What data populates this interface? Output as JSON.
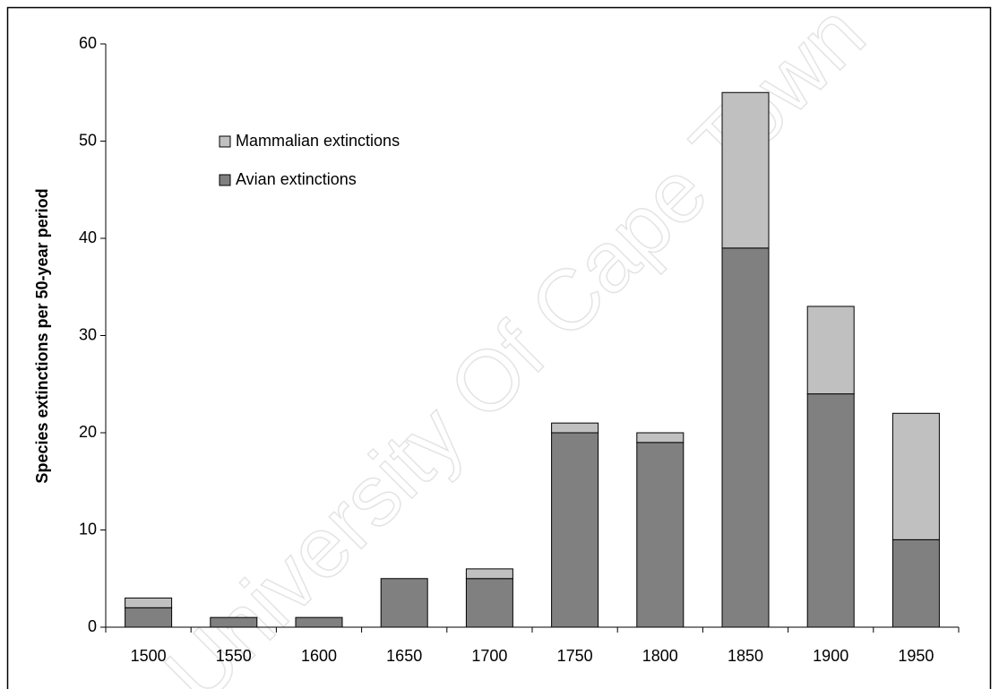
{
  "chart_data": {
    "type": "stacked-bar",
    "y_label": "Species extinctions per 50-year period",
    "categories": [
      "1500",
      "1550",
      "1600",
      "1650",
      "1700",
      "1750",
      "1800",
      "1850",
      "1900",
      "1950"
    ],
    "series": [
      {
        "name": "Avian extinctions",
        "color": "#808080",
        "values": [
          2,
          1,
          1,
          5,
          5,
          20,
          19,
          39,
          24,
          9
        ]
      },
      {
        "name": "Mammalian extinctions",
        "color": "#c0c0c0",
        "values": [
          1,
          0,
          0,
          0,
          1,
          1,
          1,
          16,
          9,
          13
        ]
      }
    ],
    "ylim": [
      0,
      60
    ],
    "yticks": [
      0,
      10,
      20,
      30,
      40,
      50,
      60
    ],
    "grid": false,
    "legend": "upper-left",
    "watermark": "University Of Cape Town"
  }
}
